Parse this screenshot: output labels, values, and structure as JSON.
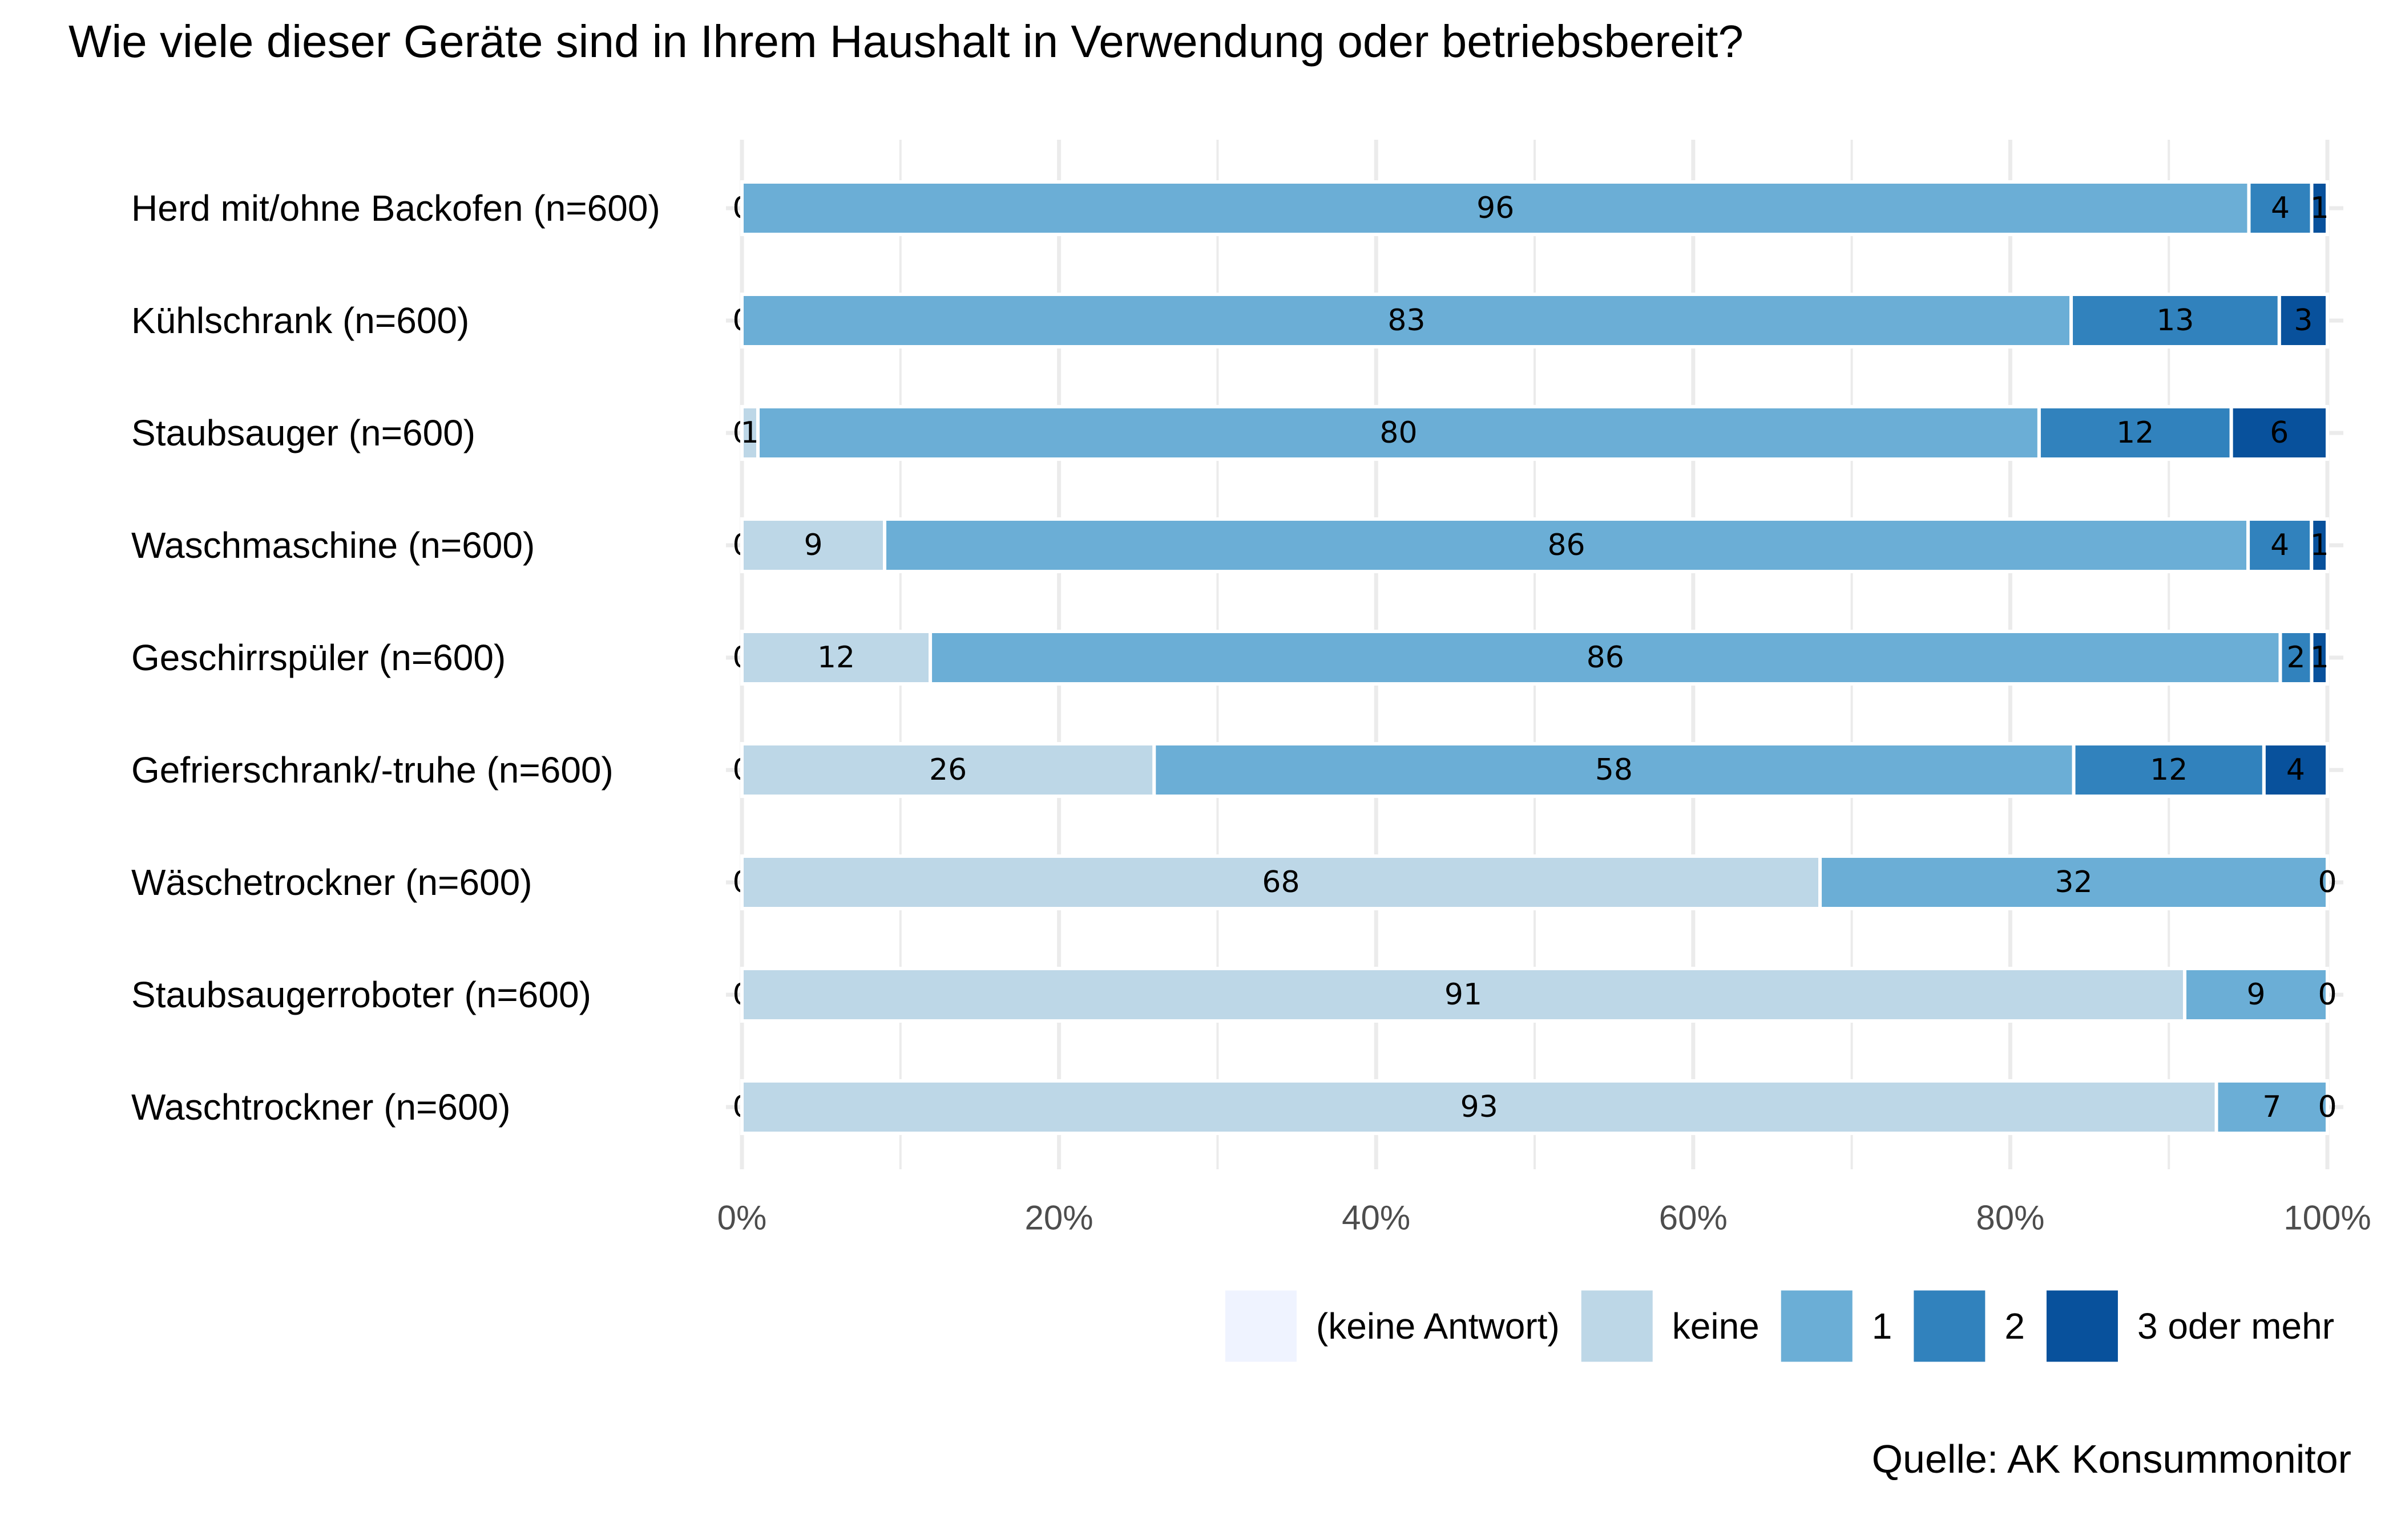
{
  "chart_data": {
    "type": "bar",
    "orientation": "horizontal",
    "stacked": true,
    "title": "Wie viele dieser Geräte sind in Ihrem Haushalt in Verwendung oder betriebsbereit?",
    "caption": "Quelle: AK Konsummonitor",
    "xlabel": "",
    "ylabel": "",
    "xlim": [
      0,
      100
    ],
    "x_ticks": [
      "0%",
      "20%",
      "40%",
      "60%",
      "80%",
      "100%"
    ],
    "grid": true,
    "legend_position": "bottom-right",
    "categories": [
      "Herd mit/ohne Backofen (n=600)",
      "Kühlschrank (n=600)",
      "Staubsauger (n=600)",
      "Waschmaschine (n=600)",
      "Geschirrspüler (n=600)",
      "Gefrierschrank/-truhe (n=600)",
      "Wäschetrockner (n=600)",
      "Staubsaugerroboter (n=600)",
      "Waschtrockner (n=600)"
    ],
    "series": [
      {
        "name": "(keine Antwort)",
        "color": "#eff3ff",
        "values": [
          0,
          0,
          0,
          0,
          0,
          0,
          0,
          0,
          0
        ]
      },
      {
        "name": "keine",
        "color": "#bdd7e7",
        "values": [
          0,
          0,
          1,
          9,
          12,
          26,
          68,
          91,
          93
        ]
      },
      {
        "name": "1",
        "color": "#6baed6",
        "values": [
          96,
          83,
          80,
          86,
          86,
          58,
          32,
          9,
          7
        ]
      },
      {
        "name": "2",
        "color": "#3182bd",
        "values": [
          4,
          13,
          12,
          4,
          2,
          12,
          0,
          0,
          0
        ]
      },
      {
        "name": "3 oder mehr",
        "color": "#08519c",
        "values": [
          1,
          3,
          6,
          1,
          1,
          4,
          0,
          0,
          0
        ]
      }
    ],
    "data_labels": [
      [
        "0",
        "0",
        "96",
        "4",
        "1"
      ],
      [
        "0",
        "0",
        "83",
        "13",
        "3"
      ],
      [
        "0",
        "1",
        "80",
        "12",
        "6"
      ],
      [
        "0",
        "9",
        "86",
        "4",
        "1"
      ],
      [
        "0",
        "12",
        "86",
        "2",
        "1"
      ],
      [
        "0",
        "26",
        "58",
        "12",
        "4"
      ],
      [
        "0",
        "68",
        "32",
        "0",
        "0"
      ],
      [
        "0",
        "91",
        "9",
        "0",
        "0"
      ],
      [
        "0",
        "93",
        "7",
        "0",
        "0"
      ]
    ]
  }
}
